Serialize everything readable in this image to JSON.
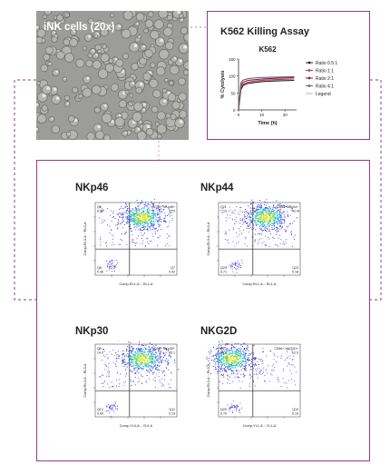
{
  "micrograph": {
    "title": "iNK cells (20x)"
  },
  "assay": {
    "title": "K562 Killing Assay",
    "chart_data": {
      "type": "line",
      "title": "K562",
      "xlabel": "Time (h)",
      "ylabel": "% Cytolysis",
      "xlim": [
        0,
        25
      ],
      "ylim": [
        0,
        150
      ],
      "xticks": [
        0,
        10,
        20
      ],
      "yticks": [
        0,
        50,
        100,
        150
      ],
      "series": [
        {
          "name": "Ratio 0.5:1",
          "color": "#222222",
          "x": [
            0,
            1,
            2,
            4,
            8,
            12,
            18,
            24
          ],
          "y": [
            0,
            60,
            72,
            78,
            82,
            84,
            86,
            87
          ]
        },
        {
          "name": "Ratio 1:1",
          "color": "#c03a3a",
          "x": [
            0,
            1,
            2,
            4,
            8,
            12,
            18,
            24
          ],
          "y": [
            0,
            65,
            76,
            82,
            86,
            88,
            90,
            91
          ]
        },
        {
          "name": "Ratio 2:1",
          "color": "#7a1f5c",
          "x": [
            0,
            1,
            2,
            4,
            8,
            12,
            18,
            24
          ],
          "y": [
            0,
            72,
            82,
            87,
            90,
            92,
            94,
            95
          ]
        },
        {
          "name": "Ratio 4:1",
          "color": "#6a6a6a",
          "x": [
            0,
            1,
            2,
            4,
            8,
            12,
            18,
            24
          ],
          "y": [
            0,
            80,
            88,
            92,
            95,
            96,
            97,
            98
          ]
        },
        {
          "name": "Legend",
          "color": "#d9a0c8",
          "x": [],
          "y": []
        }
      ]
    }
  },
  "panels": [
    {
      "key": "nkp46",
      "title": "NKp46",
      "xlabel": "Comp-RL1-A :: RL1-A",
      "ylabel": "Comp-RL3-A :: RL3-A",
      "quadrants": {
        "ul_name": "Q5",
        "ul_val": "6.96",
        "ur_name": "CD56+ NKp46+",
        "ur_val": "92.2",
        "ll_name": "Q8",
        "ll_val": "0.36",
        "lr_name": "Q7",
        "lr_val": "0.92"
      },
      "cluster": "upper-right"
    },
    {
      "key": "nkp44",
      "title": "NKp44",
      "xlabel": "Comp-RL1-A :: RL1-A",
      "ylabel": "Comp-RL3-A :: RL3-A",
      "quadrants": {
        "ul_name": "Q21",
        "ul_val": "7.13",
        "ur_name": "CD56+ NKp44+",
        "ur_val": "92.0",
        "ll_name": "Q24",
        "ll_val": "0.71",
        "lr_name": "Q23",
        "lr_val": "0.18"
      },
      "cluster": "upper-right"
    },
    {
      "key": "nkp30",
      "title": "NKp30",
      "xlabel": "Comp-YL4-A :: YL4-A",
      "ylabel": "Comp-RL3-A :: RL3-A",
      "quadrants": {
        "ul_name": "Q9",
        "ul_val": "14.0",
        "ur_name": "CD56+ NKp30+",
        "ur_val": "85.1",
        "ll_name": "Q12",
        "ll_val": "0.69",
        "lr_name": "Q11",
        "lr_val": "0.19"
      },
      "cluster": "upper-right"
    },
    {
      "key": "nkg2d",
      "title": "NKG2D",
      "xlabel": "Comp-YL1-A :: YL1-A",
      "ylabel": "Comp-RL3-A :: RL3-A",
      "quadrants": {
        "ul_name": "Q17",
        "ul_val": "86.8",
        "ur_name": "CD56+ NKG2D+",
        "ur_val": "12.5",
        "ll_name": "Q20",
        "ll_val": "0.70",
        "lr_name": "Q19",
        "lr_val": "0.19"
      },
      "cluster": "upper-left"
    }
  ],
  "colors": {
    "frame": "#8e3c8d",
    "connector": "#8e3c8d"
  }
}
